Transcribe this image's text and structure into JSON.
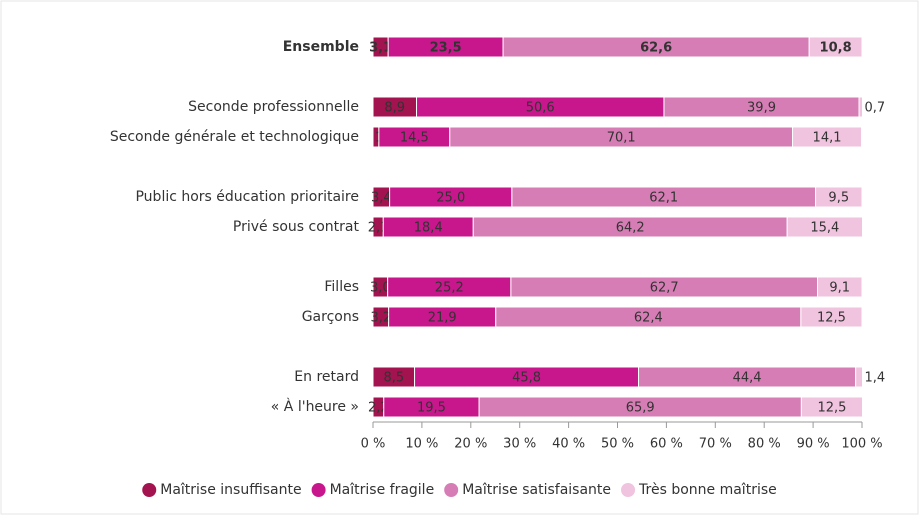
{
  "chart_data": {
    "type": "stacked-bar-horizontal",
    "categories": [
      "Ensemble",
      "Seconde professionnelle",
      "Seconde générale et technologique",
      "Public hors éducation prioritaire",
      "Privé sous contrat",
      "Filles",
      "Garçons",
      "En retard",
      "« À l'heure »"
    ],
    "series": [
      {
        "name": "Maîtrise insuffisante",
        "color": "#a3134f",
        "values": [
          3.1,
          8.9,
          1.2,
          3.4,
          2.1,
          3.0,
          3.2,
          8.5,
          2.2
        ],
        "value_labels": [
          "3,1",
          "8,9",
          "1,2",
          "3,4",
          "2,1",
          "3,0",
          "3,2",
          "8,5",
          "2,2"
        ]
      },
      {
        "name": "Maîtrise fragile",
        "color": "#c8178c",
        "values": [
          23.5,
          50.6,
          14.5,
          25.0,
          18.4,
          25.2,
          21.9,
          45.8,
          19.5
        ],
        "value_labels": [
          "23,5",
          "50,6",
          "14,5",
          "25,0",
          "18,4",
          "25,2",
          "21,9",
          "45,8",
          "19,5"
        ]
      },
      {
        "name": "Maîtrise satisfaisante",
        "color": "#d77db6",
        "values": [
          62.6,
          39.9,
          70.1,
          62.1,
          64.2,
          62.7,
          62.4,
          44.4,
          65.9
        ],
        "value_labels": [
          "62,6",
          "39,9",
          "70,1",
          "62,1",
          "64,2",
          "62,7",
          "62,4",
          "44,4",
          "65,9"
        ]
      },
      {
        "name": "Très bonne maîtrise",
        "color": "#f0c3de",
        "values": [
          10.8,
          0.7,
          14.1,
          9.5,
          15.4,
          9.1,
          12.5,
          1.4,
          12.5
        ],
        "value_labels": [
          "10,8",
          "0,7",
          "14,1",
          "9,5",
          "15,4",
          "9,1",
          "12,5",
          "1,4",
          "12,5"
        ]
      }
    ],
    "xlim": [
      0,
      100
    ],
    "xticks": [
      {
        "value": 0,
        "label": "0 %"
      },
      {
        "value": 10,
        "label": "10 %"
      },
      {
        "value": 20,
        "label": "20 %"
      },
      {
        "value": 30,
        "label": "30 %"
      },
      {
        "value": 40,
        "label": "40 %"
      },
      {
        "value": 50,
        "label": "50 %"
      },
      {
        "value": 60,
        "label": "60 %"
      },
      {
        "value": 70,
        "label": "70 %"
      },
      {
        "value": 80,
        "label": "80 %"
      },
      {
        "value": 90,
        "label": "90 %"
      },
      {
        "value": 100,
        "label": "100 %"
      }
    ],
    "legend": "bottom"
  }
}
